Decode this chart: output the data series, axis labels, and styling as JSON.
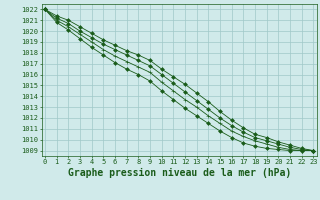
{
  "xlabel": "Graphe pression niveau de la mer (hPa)",
  "ylim": [
    1008.5,
    1022.5
  ],
  "xlim": [
    -0.3,
    23.3
  ],
  "yticks": [
    1009,
    1010,
    1011,
    1012,
    1013,
    1014,
    1015,
    1016,
    1017,
    1018,
    1019,
    1020,
    1021,
    1022
  ],
  "xticks": [
    0,
    1,
    2,
    3,
    4,
    5,
    6,
    7,
    8,
    9,
    10,
    11,
    12,
    13,
    14,
    15,
    16,
    17,
    18,
    19,
    20,
    21,
    22,
    23
  ],
  "bg_color": "#d0eaea",
  "grid_color": "#a0c8c8",
  "line_color": "#1a5c1a",
  "series": [
    [
      1022.0,
      1021.4,
      1021.0,
      1020.4,
      1019.8,
      1019.2,
      1018.7,
      1018.2,
      1017.8,
      1017.3,
      1016.5,
      1015.8,
      1015.1,
      1014.3,
      1013.5,
      1012.6,
      1011.8,
      1011.1,
      1010.5,
      1010.2,
      1009.8,
      1009.5,
      1009.2,
      1009.0
    ],
    [
      1022.0,
      1021.2,
      1020.7,
      1020.0,
      1019.4,
      1018.8,
      1018.3,
      1017.8,
      1017.3,
      1016.8,
      1016.0,
      1015.2,
      1014.4,
      1013.6,
      1012.8,
      1012.0,
      1011.3,
      1010.7,
      1010.2,
      1009.9,
      1009.6,
      1009.3,
      1009.1,
      1009.0
    ],
    [
      1022.0,
      1021.0,
      1020.4,
      1019.7,
      1019.0,
      1018.3,
      1017.7,
      1017.2,
      1016.7,
      1016.2,
      1015.3,
      1014.5,
      1013.7,
      1013.0,
      1012.2,
      1011.5,
      1010.8,
      1010.3,
      1009.9,
      1009.6,
      1009.3,
      1009.1,
      1009.0,
      1009.0
    ],
    [
      1022.0,
      1020.8,
      1020.1,
      1019.3,
      1018.5,
      1017.8,
      1017.1,
      1016.5,
      1016.0,
      1015.4,
      1014.5,
      1013.7,
      1012.9,
      1012.2,
      1011.5,
      1010.8,
      1010.2,
      1009.7,
      1009.4,
      1009.2,
      1009.1,
      1009.0,
      1009.0,
      1009.0
    ]
  ],
  "figsize": [
    3.2,
    2.0
  ],
  "dpi": 100,
  "tick_fontsize": 5.0,
  "xlabel_fontsize": 7.0
}
